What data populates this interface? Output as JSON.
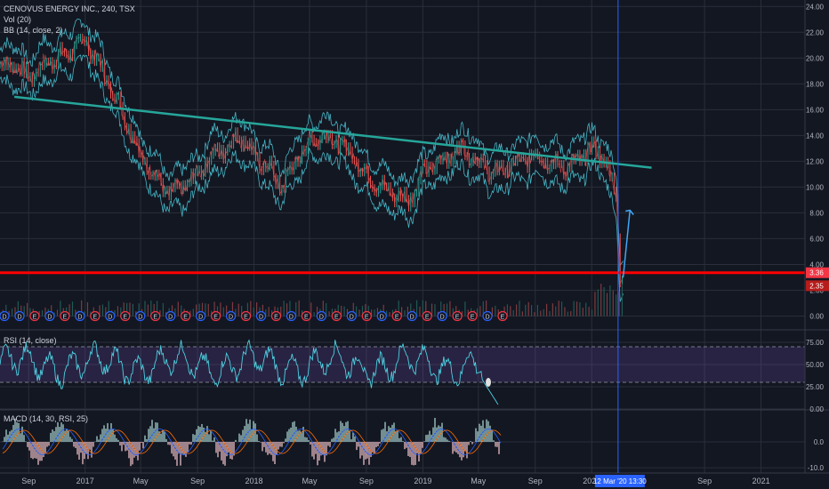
{
  "main_legend": {
    "symbol": "CENOVUS ENERGY INC., 240, TSX",
    "vol": "Vol (20)",
    "bb": "BB (14, close, 2)"
  },
  "rsi_legend": "RSI (14, close)",
  "macd_legend": "MACD (14, 30, RSI, 25)",
  "colors": {
    "background": "#131722",
    "grid": "#2a2e39",
    "price": "#4dd0e1",
    "candle_up": "#26a69a",
    "candle_down": "#ef5350",
    "trendline": "#26a69a",
    "support": "#ff0000",
    "rsi_band": "#7e57c2",
    "macd_up": "#b2dfdb",
    "macd_down": "#ffcdd2"
  },
  "chart_data": [
    {
      "type": "line",
      "panel": "price",
      "series": [
        {
          "x": [
            "2016-08",
            "2016-09",
            "2016-10",
            "2016-11",
            "2016-12",
            "2017-01",
            "2017-02",
            "2017-03",
            "2017-04",
            "2017-05",
            "2017-06",
            "2017-07",
            "2017-08",
            "2017-09",
            "2017-10",
            "2017-11",
            "2017-12",
            "2018-01",
            "2018-02",
            "2018-03",
            "2018-04",
            "2018-05",
            "2018-06",
            "2018-07",
            "2018-08",
            "2018-09",
            "2018-10",
            "2018-11",
            "2018-12",
            "2019-01",
            "2019-02",
            "2019-03",
            "2019-04",
            "2019-05",
            "2019-06",
            "2019-07",
            "2019-08",
            "2019-09",
            "2019-10",
            "2019-11",
            "2019-12",
            "2020-01",
            "2020-02",
            "2020-03-09",
            "2020-03-16",
            "2020-03-23"
          ],
          "values": [
            19.5,
            18.5,
            19.5,
            20.0,
            20.5,
            21.5,
            19.5,
            17.5,
            15.0,
            12.5,
            11.0,
            9.5,
            10.0,
            11.0,
            12.5,
            13.0,
            14.0,
            12.5,
            11.5,
            10.0,
            12.0,
            13.5,
            14.0,
            13.5,
            12.5,
            11.0,
            10.0,
            9.5,
            9.0,
            11.0,
            12.0,
            12.5,
            13.0,
            12.0,
            11.0,
            11.5,
            12.0,
            12.5,
            12.0,
            11.5,
            12.0,
            13.0,
            12.0,
            9.0,
            2.5,
            3.0
          ]
        }
      ],
      "annotations": {
        "descending_trendline": {
          "x": [
            "2016-08",
            "2020-04"
          ],
          "y": [
            17.0,
            11.5
          ]
        },
        "support_line": 3.36,
        "projected_rebound": {
          "x": [
            "2020-03-23",
            "2020-03-30"
          ],
          "y": [
            3.0,
            8.2
          ]
        },
        "cursor_x": "2020-03-12"
      },
      "ylim": [
        -1.0,
        24.5
      ],
      "yticks": [
        "24.00",
        "22.00",
        "20.00",
        "18.00",
        "16.00",
        "14.00",
        "12.00",
        "10.00",
        "8.00",
        "6.00",
        "4.00",
        "2.00",
        "0.00"
      ],
      "price_labels": [
        "3.36",
        "2.35"
      ],
      "event_badges": [
        "D",
        "D",
        "E",
        "D",
        "E",
        "D",
        "E",
        "D",
        "E",
        "D",
        "E",
        "D",
        "E",
        "D",
        "E",
        "D",
        "E",
        "D",
        "E",
        "D",
        "E",
        "D",
        "E",
        "D",
        "E",
        "D",
        "E",
        "D",
        "E",
        "D",
        "E",
        "E",
        "D",
        "E"
      ]
    },
    {
      "type": "line",
      "panel": "rsi",
      "series": [
        {
          "name": "RSI (14, close)"
        }
      ],
      "levels": [
        70,
        30
      ],
      "ylim": [
        0,
        88
      ],
      "yticks": [
        "75.00",
        "50.00",
        "25.00",
        "0.00"
      ],
      "marker_value": 30
    },
    {
      "type": "bar",
      "panel": "macd",
      "series": [
        {
          "name": "MACD (14, 30, RSI, 25)"
        }
      ],
      "ylim": [
        -12,
        12
      ],
      "yticks": [
        "0.0",
        "-10.0"
      ]
    }
  ],
  "x_axis": {
    "labels": [
      "Sep",
      "2017",
      "May",
      "Sep",
      "2018",
      "May",
      "Sep",
      "2019",
      "May",
      "Sep",
      "2020",
      "Sep",
      "2021"
    ],
    "label_dates": [
      "2016-09",
      "2017-01",
      "2017-05",
      "2017-09",
      "2018-01",
      "2018-05",
      "2018-09",
      "2019-01",
      "2019-05",
      "2019-09",
      "2020-01",
      "2020-09",
      "2021-01"
    ],
    "cursor_label": "12 Mar '20",
    "cursor_time": "13:30"
  }
}
